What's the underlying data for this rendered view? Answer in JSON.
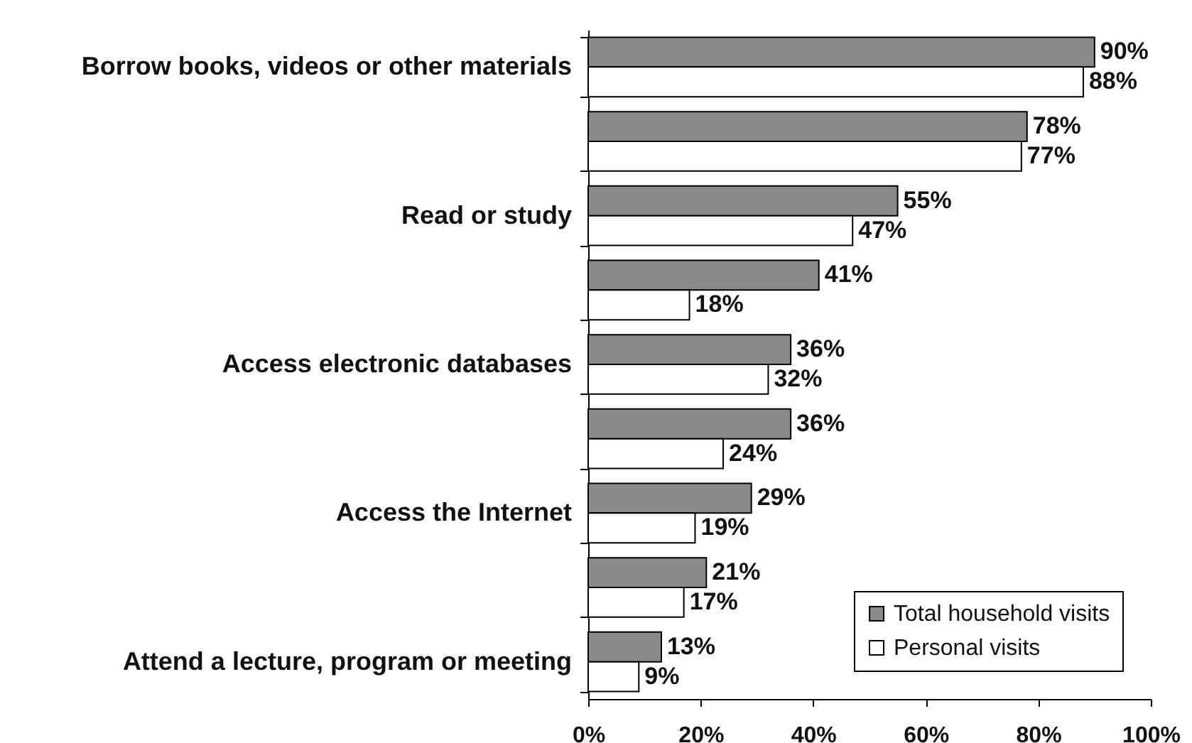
{
  "chart_data": {
    "type": "bar",
    "orientation": "horizontal",
    "categories": [
      "Borrow books, videos or other materials",
      null,
      "Read or study",
      null,
      "Access electronic databases",
      null,
      "Access the Internet",
      null,
      "Attend a lecture, program or meeting"
    ],
    "series": [
      {
        "name": "Total household visits",
        "color": "#8a8a8a",
        "values": [
          90,
          78,
          55,
          41,
          36,
          36,
          29,
          21,
          13
        ],
        "value_labels": [
          "90%",
          "78%",
          "55%",
          "41%",
          "36%",
          "36%",
          "29%",
          "21%",
          "13%"
        ]
      },
      {
        "name": "Personal visits",
        "color": "#ffffff",
        "values": [
          88,
          77,
          47,
          18,
          32,
          24,
          19,
          17,
          9
        ],
        "value_labels": [
          "88%",
          "77%",
          "47%",
          "18%",
          "32%",
          "24%",
          "19%",
          "17%",
          "9%"
        ]
      }
    ],
    "xlim": [
      0,
      100
    ],
    "xticks": [
      {
        "value": 0,
        "label": "0%"
      },
      {
        "value": 20,
        "label": "20%"
      },
      {
        "value": 40,
        "label": "40%"
      },
      {
        "value": 60,
        "label": "60%"
      },
      {
        "value": 80,
        "label": "80%"
      },
      {
        "value": 100,
        "label": "100%"
      }
    ],
    "legend": "bottom right"
  }
}
